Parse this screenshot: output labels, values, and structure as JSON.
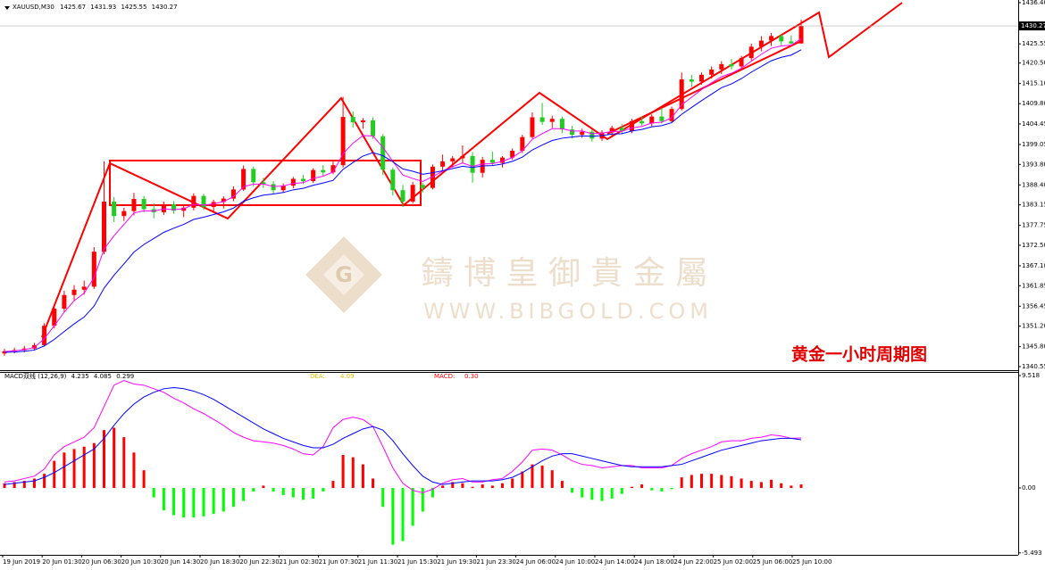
{
  "header": {
    "symbol": "XAUUSD,M30"
  },
  "watermark": {
    "cn": "鑄 博 皇 御 貴 金 屬",
    "url": "WWW.BIBGOLD.COM"
  },
  "annotation": "黄金一小时周期图",
  "x_labels": [
    "19 Jun 2019",
    "20 Jun 01:30",
    "20 Jun 06:30",
    "20 Jun 10:30",
    "20 Jun 14:30",
    "20 Jun 18:30",
    "20 Jun 22:30",
    "21 Jun 02:30",
    "21 Jun 07:30",
    "21 Jun 11:30",
    "21 Jun 15:30",
    "21 Jun 19:30",
    "21 Jun 23:30",
    "24 Jun 06:00",
    "24 Jun 10:00",
    "24 Jun 14:00",
    "24 Jun 18:00",
    "24 Jun 22:00",
    "25 Jun 02:00",
    "25 Jun 06:00",
    "25 Jun 10:00"
  ],
  "chart_data": [
    {
      "type": "candlestick",
      "up_color": "#ff0000",
      "down_color": "#22cc22",
      "open": [
        1344.0,
        1344.6,
        1344.9,
        1345.3,
        1346.2,
        1351.3,
        1355.8,
        1359.4,
        1360.8,
        1361.6,
        1370.8,
        1384.0,
        1380.2,
        1381.5,
        1384.7,
        1382.0,
        1381.2,
        1383.3,
        1381.6,
        1382.4,
        1385.5,
        1382.6,
        1383.9,
        1384.8,
        1387.2,
        1392.6,
        1389.1,
        1388.6,
        1387.0,
        1388.2,
        1390.0,
        1389.4,
        1392.3,
        1391.7,
        1393.6,
        1406.3,
        1404.9,
        1405.4,
        1401.2,
        1392.4,
        1387.0,
        1384.0,
        1388.4,
        1387.6,
        1393.2,
        1394.6,
        1395.4,
        1396.0,
        1391.6,
        1395.0,
        1394.2,
        1395.6,
        1397.4,
        1401.0,
        1406.2,
        1405.0,
        1405.8,
        1403.0,
        1401.6,
        1402.4,
        1400.6,
        1402.2,
        1403.4,
        1402.6,
        1405.2,
        1404.6,
        1406.4,
        1405.2,
        1408.4,
        1416.2,
        1415.6,
        1417.4,
        1418.8,
        1420.2,
        1419.6,
        1421.8,
        1424.8,
        1426.4,
        1427.6,
        1426.2,
        1425.67
      ],
      "high": [
        1345.2,
        1345.5,
        1346.0,
        1346.8,
        1352.0,
        1356.5,
        1360.5,
        1362.0,
        1363.2,
        1372.0,
        1394.6,
        1385.2,
        1382.4,
        1386.3,
        1385.5,
        1383.6,
        1384.0,
        1384.1,
        1383.0,
        1386.2,
        1386.0,
        1384.5,
        1385.4,
        1388.0,
        1393.5,
        1393.2,
        1390.3,
        1389.4,
        1388.8,
        1390.5,
        1391.0,
        1392.8,
        1393.6,
        1395.0,
        1411.6,
        1407.8,
        1406.0,
        1406.2,
        1401.8,
        1393.0,
        1388.4,
        1389.2,
        1389.0,
        1393.8,
        1396.4,
        1396.0,
        1398.8,
        1397.0,
        1395.8,
        1397.2,
        1396.0,
        1398.0,
        1401.6,
        1407.5,
        1410.0,
        1406.6,
        1406.4,
        1404.0,
        1403.2,
        1403.0,
        1402.8,
        1404.0,
        1404.4,
        1405.8,
        1406.4,
        1407.0,
        1408.6,
        1409.0,
        1418.0,
        1417.4,
        1418.0,
        1419.6,
        1421.0,
        1421.6,
        1422.4,
        1425.6,
        1427.6,
        1428.4,
        1428.0,
        1427.8,
        1431.93
      ],
      "low": [
        1343.4,
        1344.0,
        1344.3,
        1344.8,
        1345.9,
        1350.6,
        1354.9,
        1357.8,
        1359.5,
        1361.0,
        1370.1,
        1378.6,
        1378.9,
        1380.4,
        1381.2,
        1379.6,
        1380.5,
        1380.8,
        1379.9,
        1381.7,
        1381.8,
        1381.0,
        1382.2,
        1384.1,
        1386.8,
        1388.0,
        1387.6,
        1386.1,
        1386.3,
        1387.5,
        1388.6,
        1388.9,
        1390.8,
        1391.2,
        1393.0,
        1403.5,
        1403.2,
        1400.5,
        1391.0,
        1385.6,
        1382.6,
        1383.5,
        1386.4,
        1387.2,
        1392.0,
        1393.0,
        1394.2,
        1389.0,
        1390.4,
        1393.4,
        1393.0,
        1395.0,
        1396.8,
        1400.6,
        1404.2,
        1403.4,
        1402.0,
        1400.6,
        1400.8,
        1399.8,
        1400.0,
        1401.2,
        1401.8,
        1402.0,
        1404.0,
        1403.8,
        1404.6,
        1404.8,
        1408.0,
        1414.2,
        1414.8,
        1416.4,
        1417.6,
        1418.8,
        1419.0,
        1421.2,
        1423.6,
        1425.0,
        1425.2,
        1425.4,
        1425.55
      ],
      "close": [
        1344.6,
        1344.9,
        1345.3,
        1346.2,
        1351.3,
        1355.8,
        1359.4,
        1360.8,
        1361.6,
        1370.8,
        1384.0,
        1380.2,
        1381.5,
        1384.7,
        1382.0,
        1381.2,
        1383.3,
        1381.6,
        1382.4,
        1385.5,
        1382.6,
        1383.9,
        1384.8,
        1387.2,
        1392.6,
        1389.1,
        1388.6,
        1387.0,
        1388.2,
        1390.0,
        1389.4,
        1392.3,
        1391.7,
        1393.6,
        1406.3,
        1404.9,
        1405.4,
        1401.2,
        1392.4,
        1387.0,
        1384.0,
        1388.4,
        1387.6,
        1393.2,
        1394.6,
        1395.4,
        1396.0,
        1391.6,
        1395.0,
        1394.2,
        1395.6,
        1397.4,
        1401.0,
        1406.2,
        1405.0,
        1405.8,
        1403.0,
        1401.6,
        1402.4,
        1400.6,
        1402.2,
        1403.4,
        1402.6,
        1405.2,
        1404.6,
        1406.4,
        1405.2,
        1408.4,
        1416.2,
        1415.6,
        1417.4,
        1418.8,
        1420.2,
        1419.6,
        1421.8,
        1424.8,
        1426.4,
        1427.6,
        1426.2,
        1425.67,
        1430.27
      ],
      "series": [
        {
          "color": "#ff00ff",
          "values": [
            1344.5,
            1344.7,
            1345.0,
            1345.6,
            1347.9,
            1351.3,
            1354.9,
            1357.9,
            1359.9,
            1364.0,
            1371.5,
            1375.0,
            1378.0,
            1381.0,
            1381.6,
            1381.5,
            1382.1,
            1381.9,
            1382.1,
            1383.3,
            1383.1,
            1383.4,
            1384.0,
            1385.3,
            1387.9,
            1388.6,
            1388.6,
            1388.0,
            1388.1,
            1388.8,
            1389.0,
            1390.1,
            1390.7,
            1391.8,
            1396.6,
            1399.4,
            1401.4,
            1401.3,
            1398.3,
            1394.6,
            1391.0,
            1390.1,
            1389.3,
            1390.6,
            1392.0,
            1393.2,
            1394.2,
            1393.3,
            1393.9,
            1394.0,
            1394.6,
            1395.6,
            1397.4,
            1400.4,
            1401.9,
            1403.2,
            1403.2,
            1402.6,
            1402.6,
            1401.9,
            1402.0,
            1402.5,
            1402.5,
            1403.4,
            1403.8,
            1404.7,
            1404.9,
            1406.1,
            1409.5,
            1411.5,
            1413.5,
            1415.3,
            1416.9,
            1417.8,
            1419.1,
            1421.0,
            1422.8,
            1424.4,
            1425.0,
            1425.2,
            1426.9
          ]
        },
        {
          "color": "#0000ff",
          "values": [
            1344.3,
            1344.4,
            1344.6,
            1344.9,
            1346.0,
            1347.7,
            1349.8,
            1351.8,
            1353.6,
            1356.5,
            1361.2,
            1364.6,
            1367.6,
            1370.7,
            1372.7,
            1374.3,
            1375.9,
            1377.0,
            1378.0,
            1379.3,
            1379.9,
            1380.6,
            1381.3,
            1382.3,
            1384.1,
            1385.0,
            1385.7,
            1386.0,
            1386.4,
            1387.1,
            1387.5,
            1388.3,
            1388.9,
            1389.6,
            1392.5,
            1394.3,
            1396.0,
            1396.9,
            1396.1,
            1394.5,
            1392.6,
            1392.0,
            1391.2,
            1391.6,
            1392.1,
            1392.7,
            1393.3,
            1393.0,
            1393.4,
            1393.5,
            1393.9,
            1394.6,
            1395.7,
            1397.6,
            1398.9,
            1400.1,
            1400.7,
            1401.0,
            1401.3,
            1401.2,
            1401.4,
            1401.8,
            1401.9,
            1402.6,
            1403.0,
            1403.7,
            1404.0,
            1404.8,
            1407.0,
            1408.8,
            1410.6,
            1412.3,
            1414.0,
            1415.0,
            1416.4,
            1418.1,
            1419.6,
            1421.1,
            1422.0,
            1422.6,
            1424.0
          ]
        }
      ],
      "ylim": [
        1339.6,
        1437.1
      ],
      "yticks": [
        {
          "value": 1436.4,
          "label": "1436.40"
        },
        1425.55,
        {
          "value": 1420.5,
          "label": "1420.50"
        },
        {
          "value": 1415.1,
          "label": "1415.10"
        },
        {
          "value": 1409.8,
          "label": "1409.80"
        },
        1404.45,
        1399.05,
        {
          "value": 1393.8,
          "label": "1393.80"
        },
        {
          "value": 1388.4,
          "label": "1388.40"
        },
        1383.15,
        1377.75,
        {
          "value": 1372.5,
          "label": "1372.50"
        },
        {
          "value": 1367.1,
          "label": "1367.10"
        },
        1361.85,
        1356.45,
        {
          "value": 1351.2,
          "label": "1351.20"
        },
        {
          "value": 1345.8,
          "label": "1345.80"
        },
        1340.55
      ]
    },
    {
      "type": "macd",
      "title": "MACD双线 (12,26,9)",
      "series": [
        {
          "color": "#ff00ff",
          "values": [
            0.5,
            0.6,
            0.8,
            1.0,
            1.6,
            2.8,
            3.5,
            3.9,
            4.3,
            5.1,
            6.9,
            8.7,
            9.1,
            8.8,
            8.7,
            8.4,
            8.1,
            7.6,
            7.2,
            6.7,
            6.3,
            5.8,
            5.3,
            4.7,
            4.3,
            4.0,
            3.9,
            3.8,
            3.6,
            3.3,
            2.9,
            2.8,
            3.5,
            5.1,
            5.8,
            6.0,
            5.8,
            5.2,
            3.5,
            1.7,
            0.4,
            -0.2,
            -0.4,
            -0.1,
            0.4,
            0.7,
            0.8,
            0.5,
            0.5,
            0.7,
            0.8,
            1.4,
            2.2,
            3.2,
            3.3,
            3.2,
            2.8,
            2.3,
            2.0,
            1.9,
            1.7,
            1.8,
            1.9,
            1.9,
            1.7,
            1.7,
            1.7,
            1.9,
            2.5,
            2.9,
            3.2,
            3.5,
            3.9,
            4.0,
            4.0,
            4.2,
            4.3,
            4.5,
            4.4,
            4.2,
            4.235
          ]
        },
        {
          "color": "#0000ff",
          "values": [
            0.3,
            0.4,
            0.5,
            0.6,
            0.9,
            1.3,
            1.8,
            2.3,
            2.8,
            3.3,
            4.2,
            5.3,
            6.3,
            7.1,
            7.7,
            8.1,
            8.4,
            8.5,
            8.4,
            8.2,
            7.9,
            7.5,
            7.0,
            6.5,
            6.0,
            5.5,
            5.0,
            4.6,
            4.2,
            3.9,
            3.6,
            3.4,
            3.4,
            3.7,
            4.2,
            4.6,
            5.0,
            5.2,
            4.9,
            4.0,
            2.9,
            1.9,
            1.0,
            0.5,
            0.3,
            0.4,
            0.5,
            0.6,
            0.6,
            0.6,
            0.7,
            0.9,
            1.3,
            1.8,
            2.3,
            2.7,
            2.9,
            2.9,
            2.7,
            2.5,
            2.3,
            2.1,
            1.9,
            1.8,
            1.8,
            1.8,
            1.8,
            1.9,
            2.0,
            2.3,
            2.6,
            2.9,
            3.2,
            3.4,
            3.6,
            3.8,
            4.0,
            4.1,
            4.2,
            4.2,
            4.085
          ]
        }
      ],
      "histogram": {
        "pos_color": "#ff0000",
        "neg_color": "#00ff00",
        "values": [
          0.4,
          0.5,
          0.6,
          0.8,
          1.2,
          2.3,
          3.0,
          3.3,
          3.5,
          3.8,
          4.9,
          5.1,
          4.3,
          3.0,
          1.5,
          -0.8,
          -1.9,
          -2.3,
          -2.5,
          -2.5,
          -2.4,
          -2.2,
          -2.0,
          -1.6,
          -1.1,
          -0.3,
          0.2,
          -0.3,
          -0.6,
          -0.8,
          -1.0,
          -0.9,
          -0.3,
          0.6,
          2.8,
          2.6,
          2.0,
          0.8,
          -1.6,
          -4.8,
          -4.5,
          -3.2,
          -2.0,
          -0.8,
          0.2,
          0.5,
          0.4,
          0.1,
          0.3,
          0.2,
          0.4,
          0.8,
          1.4,
          2.0,
          1.9,
          1.5,
          0.6,
          -0.4,
          -0.8,
          -1.0,
          -1.1,
          -0.9,
          -0.5,
          0.1,
          0.3,
          -0.2,
          -0.3,
          -0.1,
          0.9,
          1.1,
          1.2,
          1.2,
          1.1,
          1.0,
          0.8,
          0.6,
          0.5,
          0.7,
          0.4,
          0.2,
          0.299
        ]
      },
      "readouts": [
        {
          "label": "DEA:",
          "value": "4.09",
          "color": "#e6c200"
        },
        {
          "label": "MACD:",
          "value": "0.30",
          "color": "#ff0000"
        }
      ],
      "ylim": [
        -5.66,
        9.82
      ],
      "yticks": [
        9.518,
        {
          "value": 0,
          "label": "0.00"
        },
        -5.493
      ]
    }
  ]
}
